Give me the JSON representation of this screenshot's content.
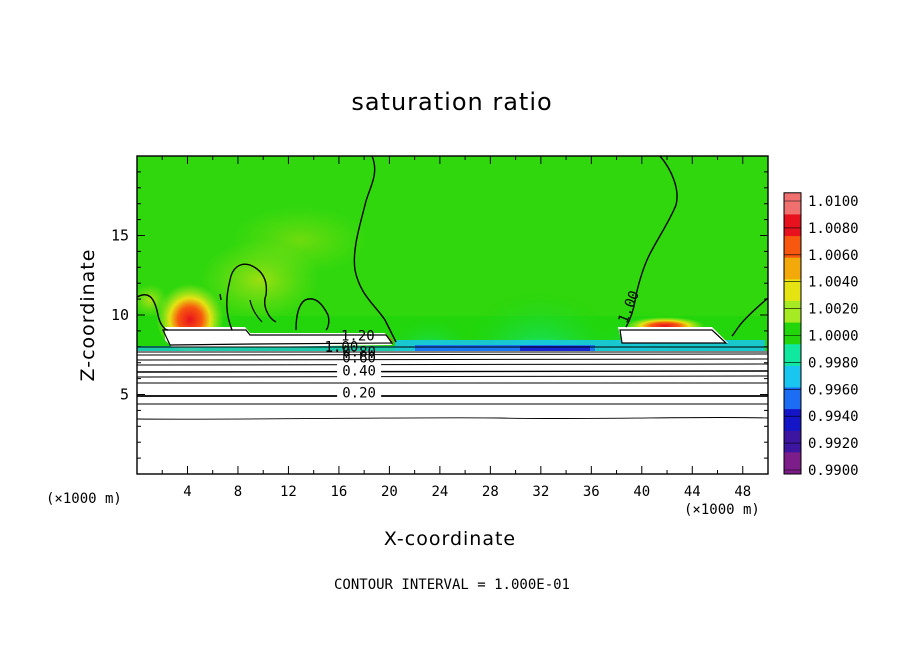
{
  "chart_data": {
    "type": "heatmap",
    "title": "saturation ratio",
    "xlabel": "X-coordinate",
    "ylabel": "Z-coordinate",
    "x_unit": "(×1000 m)",
    "xlim": [
      0,
      50
    ],
    "ylim": [
      0,
      20
    ],
    "x_ticks": [
      "4",
      "8",
      "12",
      "16",
      "20",
      "24",
      "28",
      "32",
      "36",
      "40",
      "44",
      "48"
    ],
    "y_ticks": [
      "5",
      "10",
      "15"
    ],
    "colorbar": {
      "levels": [
        "1.0100",
        "1.0080",
        "1.0060",
        "1.0040",
        "1.0020",
        "1.0000",
        "0.9980",
        "0.9960",
        "0.9940",
        "0.9920",
        "0.9900"
      ],
      "colors": [
        "#f07070",
        "#e8121e",
        "#f7570e",
        "#f4a90b",
        "#e6e312",
        "#a6ea24",
        "#22d60b",
        "#10e8a0",
        "#18c6f0",
        "#1d6cf4",
        "#1515c8",
        "#3c16a0",
        "#7d1d8a"
      ]
    },
    "contour_labels": [
      {
        "text": "1.20",
        "x": 17.5,
        "y": 8.4
      },
      {
        "text": "1.00",
        "x": 16.2,
        "y": 7.7
      },
      {
        "text": "0.80",
        "x": 17.6,
        "y": 7.4
      },
      {
        "text": "0.60",
        "x": 17.6,
        "y": 7.0
      },
      {
        "text": "0.40",
        "x": 17.6,
        "y": 6.2
      },
      {
        "text": "0.20",
        "x": 17.6,
        "y": 4.8
      },
      {
        "text": "1.00",
        "x": 39.3,
        "y": 10.4
      }
    ],
    "footer": "CONTOUR INTERVAL = 1.000E-01"
  }
}
